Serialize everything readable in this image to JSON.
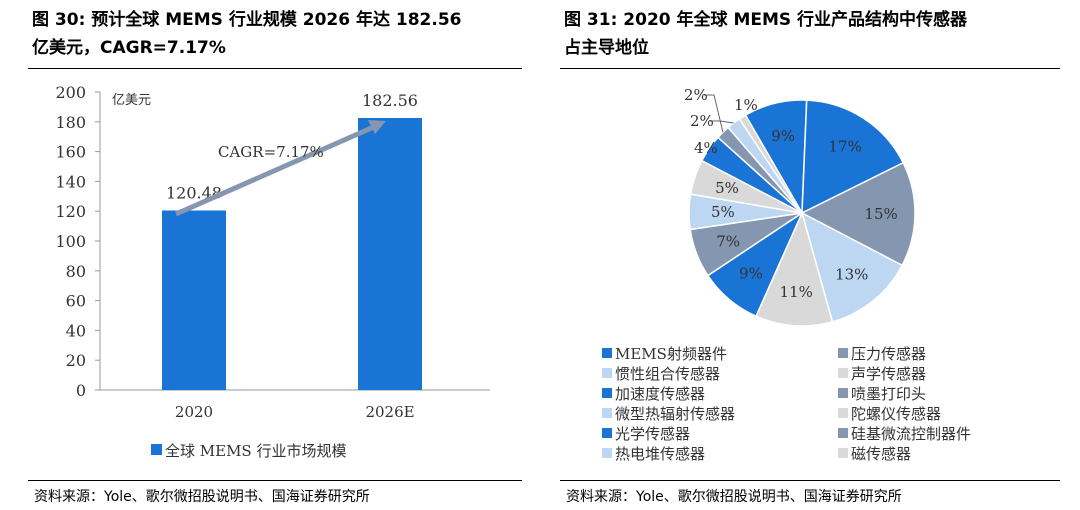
{
  "left": {
    "title_line1": "图 30: 预计全球 MEMS 行业规模 2026 年达 182.56",
    "title_line2": "亿美元，CAGR=7.17%",
    "source": "资料来源：Yole、歌尔微招股说明书、国海证券研究所"
  },
  "right": {
    "title_line1": "图 31:  2020 年全球 MEMS 行业产品结构中传感器",
    "title_line2": "占主导地位",
    "source": "资料来源：Yole、歌尔微招股说明书、国海证券研究所"
  },
  "chart_data": [
    {
      "type": "bar",
      "categories": [
        "2020",
        "2026E"
      ],
      "values": [
        120.48,
        182.56
      ],
      "data_labels": [
        "120.48",
        "182.56"
      ],
      "unit_label": "亿美元",
      "ylim": [
        0,
        200
      ],
      "yticks": [
        "0",
        "20",
        "40",
        "60",
        "80",
        "100",
        "120",
        "140",
        "160",
        "180",
        "200"
      ],
      "legend": "全球 MEMS 行业市场规模",
      "legend_placement": "bottom",
      "annotation": "CAGR=7.17%",
      "color": "#1a74d6"
    },
    {
      "type": "pie",
      "start_angle_deg": -30,
      "slices": [
        {
          "name": "",
          "value": 9,
          "label": "9%",
          "color": "#1a74d6"
        },
        {
          "name": "MEMS射频器件",
          "value": 17,
          "label": "17%",
          "color": "#1a74d6"
        },
        {
          "name": "压力传感器",
          "value": 15,
          "label": "15%",
          "color": "#8496b0"
        },
        {
          "name": "惯性组合传感器",
          "value": 13,
          "label": "13%",
          "color": "#bdd7f2"
        },
        {
          "name": "声学传感器",
          "value": 11,
          "label": "11%",
          "color": "#d9d9d9"
        },
        {
          "name": "加速度传感器",
          "value": 9,
          "label": "9%",
          "color": "#1a74d6"
        },
        {
          "name": "喷墨打印头",
          "value": 7,
          "label": "7%",
          "color": "#8496b0"
        },
        {
          "name": "微型热辐射传感器",
          "value": 5,
          "label": "5%",
          "color": "#bdd7f2"
        },
        {
          "name": "陀螺仪传感器",
          "value": 5,
          "label": "5%",
          "color": "#d9d9d9"
        },
        {
          "name": "光学传感器",
          "value": 4,
          "label": "4%",
          "color": "#1a74d6"
        },
        {
          "name": "硅基微流控制器件",
          "value": 2,
          "label": "2%",
          "color": "#8496b0"
        },
        {
          "name": "热电堆传感器",
          "value": 2,
          "label": "2%",
          "color": "#bdd7f2"
        },
        {
          "name": "磁传感器",
          "value": 1,
          "label": "1%",
          "color": "#d9d9d9"
        }
      ],
      "legend_order": [
        "MEMS射频器件",
        "压力传感器",
        "惯性组合传感器",
        "声学传感器",
        "加速度传感器",
        "喷墨打印头",
        "微型热辐射传感器",
        "陀螺仪传感器",
        "光学传感器",
        "硅基微流控制器件",
        "热电堆传感器",
        "磁传感器"
      ]
    }
  ]
}
